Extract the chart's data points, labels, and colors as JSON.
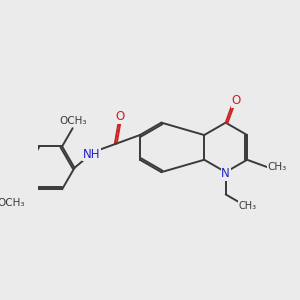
{
  "bg_color": "#ebebeb",
  "bond_color": "#3a3a3a",
  "N_color": "#2222cc",
  "O_color": "#cc2222",
  "line_width": 1.4,
  "font_size": 8.5,
  "fig_size": [
    3.0,
    3.0
  ],
  "dpi": 100,
  "xlim": [
    0,
    10
  ],
  "ylim": [
    0,
    10
  ]
}
